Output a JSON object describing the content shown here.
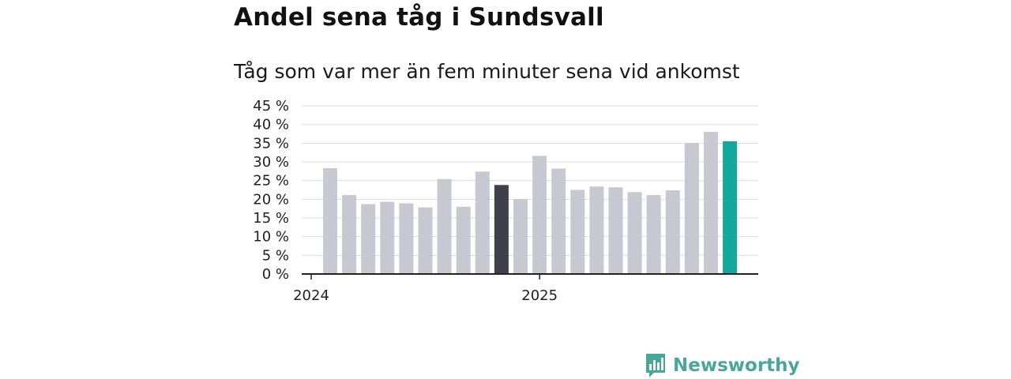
{
  "title": "Andel sena tåg i Sundsvall",
  "subtitle": "Tåg som var mer än fem minuter sena vid ankomst",
  "brand": {
    "name": "Newsworthy"
  },
  "colors": {
    "bar_default": "#c8c8d0",
    "bar_highlight_prev": "#40404a",
    "bar_latest": "#14a89a",
    "grid": "#dddddd",
    "axis": "#222222",
    "brand": "#4aa59b"
  },
  "chart_data": {
    "type": "bar",
    "title": "Andel sena tåg i Sundsvall",
    "subtitle": "Tåg som var mer än fem minuter sena vid ankomst",
    "xlabel": "",
    "ylabel": "",
    "ylim": [
      0,
      45
    ],
    "yticks": [
      {
        "value": 0,
        "label": "0 %"
      },
      {
        "value": 5,
        "label": "5 %"
      },
      {
        "value": 10,
        "label": "10 %"
      },
      {
        "value": 15,
        "label": "15 %"
      },
      {
        "value": 20,
        "label": "20 %"
      },
      {
        "value": 25,
        "label": "25 %"
      },
      {
        "value": 30,
        "label": "30 %"
      },
      {
        "value": 35,
        "label": "35 %"
      },
      {
        "value": 40,
        "label": "40 %"
      },
      {
        "value": 45,
        "label": "45 %"
      }
    ],
    "xticks": [
      {
        "index": 0,
        "label": "2024"
      },
      {
        "index": 12,
        "label": "2025"
      }
    ],
    "grid": true,
    "values": [
      28.3,
      21.1,
      18.7,
      19.3,
      18.9,
      17.8,
      25.4,
      18.0,
      27.4,
      23.8,
      20.0,
      31.6,
      28.2,
      22.5,
      23.4,
      23.2,
      21.9,
      21.1,
      22.4,
      35.0,
      38.0,
      35.5
    ],
    "highlight": {
      "index": 9,
      "kind": "prev"
    },
    "latest": {
      "index": 21,
      "kind": "latest"
    }
  }
}
